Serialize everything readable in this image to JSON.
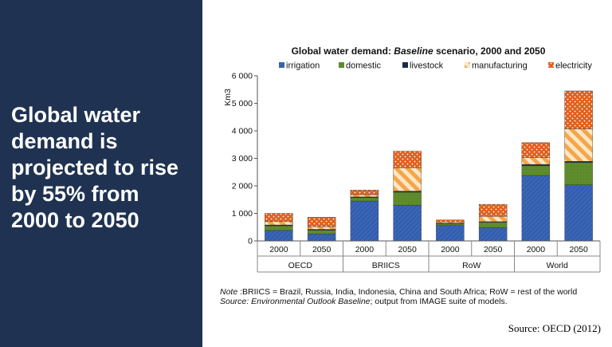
{
  "headline_lines": [
    "Global water",
    "demand is",
    "projected to rise",
    "by 55% from",
    "2000 to 2050"
  ],
  "source": "Source: OECD (2012)",
  "note": {
    "label": "Note",
    "text": " :BRIICS = Brazil, Russia, India, Indonesia, China and South Africa; RoW = rest of the world",
    "source_label": "Source: Environmental Outlook Baseline",
    "source_text": "; output from IMAGE suite of models."
  },
  "colors": {
    "panel": "#1f3251",
    "irrigation": "#3a66b8",
    "domestic": "#5f8c2c",
    "livestock": "#1b2a47",
    "manufacturing": "#f4a64a",
    "electricity": "#e0601d"
  },
  "chart_data": {
    "type": "bar",
    "stacked": true,
    "title_prefix": "Global water demand: ",
    "title_italic": "Baseline",
    "title_suffix": " scenario, 2000 and 2050",
    "ylabel": "Km3",
    "ylim": [
      0,
      6000
    ],
    "yticks": [
      "0",
      "1 000",
      "2 000",
      "3 000",
      "4 000",
      "5 000",
      "6 000"
    ],
    "ytick_values": [
      0,
      1000,
      2000,
      3000,
      4000,
      5000,
      6000
    ],
    "grid": false,
    "legend_position": "top",
    "groups": [
      "OECD",
      "BRIICS",
      "RoW",
      "World"
    ],
    "categories": [
      "2000",
      "2050",
      "2000",
      "2050",
      "2000",
      "2050",
      "2000",
      "2050"
    ],
    "series": [
      {
        "name": "irrigation",
        "values": [
          380,
          250,
          1450,
          1300,
          560,
          480,
          2380,
          2040
        ]
      },
      {
        "name": "domestic",
        "values": [
          170,
          140,
          120,
          470,
          60,
          200,
          350,
          810
        ]
      },
      {
        "name": "livestock",
        "values": [
          30,
          30,
          30,
          40,
          20,
          20,
          50,
          40
        ]
      },
      {
        "name": "manufacturing",
        "values": [
          120,
          100,
          80,
          850,
          50,
          190,
          250,
          1180
        ]
      },
      {
        "name": "electricity",
        "values": [
          300,
          340,
          170,
          600,
          70,
          440,
          540,
          1380
        ]
      }
    ]
  }
}
